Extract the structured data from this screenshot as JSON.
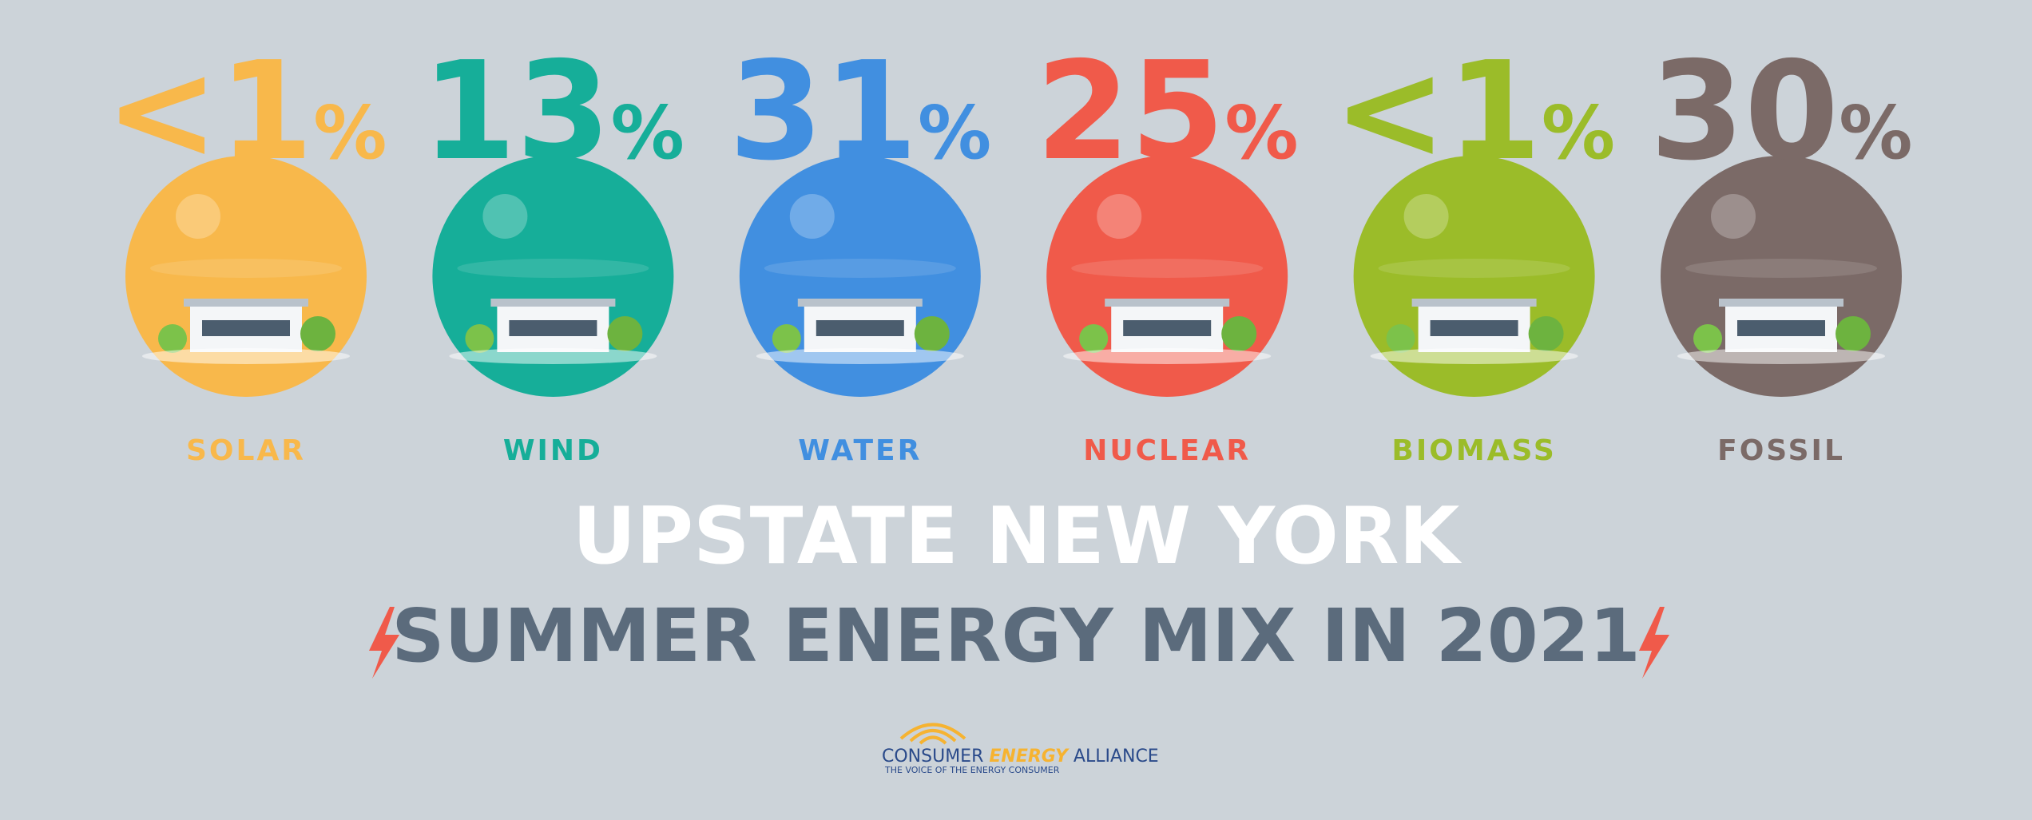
{
  "items": [
    {
      "amount": "<1",
      "unit": "%",
      "label": "SOLAR",
      "color": "#f8b84b"
    },
    {
      "amount": "13",
      "unit": "%",
      "label": "WIND",
      "color": "#16ae99"
    },
    {
      "amount": "31",
      "unit": "%",
      "label": "WATER",
      "color": "#418fe0"
    },
    {
      "amount": "25",
      "unit": "%",
      "label": "NUCLEAR",
      "color": "#f05a4a"
    },
    {
      "amount": "<1",
      "unit": "%",
      "label": "BIOMASS",
      "color": "#9bbc29"
    },
    {
      "amount": "30",
      "unit": "%",
      "label": "FOSSIL",
      "color": "#7b6a67"
    }
  ],
  "title": "UPSTATE NEW YORK",
  "subtitle": "SUMMER ENERGY MIX IN 2021",
  "logo": {
    "word_1": "CONSUMER",
    "word_2": "ENERGY",
    "word_3": "ALLIANCE",
    "tagline": "THE VOICE OF THE ENERGY CONSUMER"
  }
}
